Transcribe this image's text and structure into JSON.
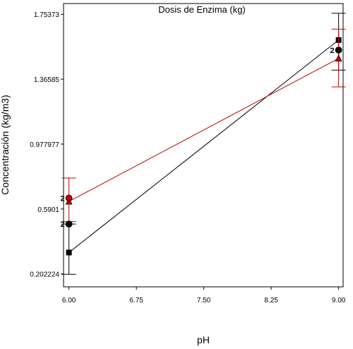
{
  "chart_data": {
    "type": "line",
    "title": "Dosis de Enzima (kg)",
    "xlabel": "pH",
    "ylabel": "Concentración (kg/m3)",
    "x_ticks": [
      "6.00",
      "6.75",
      "7.50",
      "8.25",
      "9.00"
    ],
    "y_ticks": [
      "0.202224",
      "0.5901",
      "0.977977",
      "1.36585",
      "1.75373"
    ],
    "xlim": [
      5.94,
      9.05
    ],
    "ylim": [
      0.125,
      1.818
    ],
    "series": [
      {
        "color": "#000000",
        "marker": "square",
        "x": [
          6.0,
          9.0
        ],
        "y": [
          0.33,
          1.6
        ],
        "err_low": [
          0.2,
          1.42
        ],
        "err_high": [
          0.5,
          1.76
        ]
      },
      {
        "color": "#c00000",
        "marker": "triangle",
        "x": [
          6.0,
          9.0
        ],
        "y": [
          0.635,
          1.49
        ],
        "err_low": [
          0.515,
          1.32
        ],
        "err_high": [
          0.775,
          1.665
        ]
      }
    ],
    "points": [
      {
        "series": 0,
        "marker": "circle",
        "x": 6.0,
        "y": 0.5,
        "label": "2"
      },
      {
        "series": 1,
        "marker": "circle",
        "x": 6.0,
        "y": 0.655,
        "label": "2"
      },
      {
        "series": 0,
        "marker": "circle",
        "x": 9.0,
        "y": 1.54,
        "label": "2"
      }
    ]
  }
}
